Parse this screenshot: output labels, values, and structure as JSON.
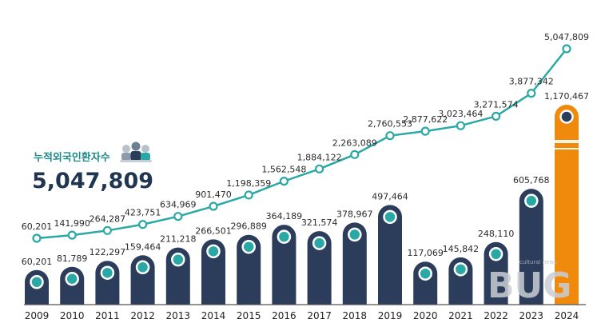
{
  "chart_data": {
    "type": "bar",
    "categories": [
      "2009",
      "2010",
      "2011",
      "2012",
      "2013",
      "2014",
      "2015",
      "2016",
      "2017",
      "2018",
      "2019",
      "2020",
      "2021",
      "2022",
      "2023",
      "2024"
    ],
    "series": [
      {
        "type": "bar",
        "values": [
          60201,
          81789,
          122297,
          159464,
          211218,
          266501,
          296889,
          364189,
          321574,
          378967,
          497464,
          117069,
          145842,
          248110,
          605768,
          1170467
        ],
        "labels": [
          "60,201",
          "81,789",
          "122,297",
          "159,464",
          "211,218",
          "266,501",
          "296,889",
          "364,189",
          "321,574",
          "378,967",
          "497,464",
          "117,069",
          "145,842",
          "248,110",
          "605,768",
          "1,170,467"
        ]
      },
      {
        "type": "line",
        "values": [
          60201,
          141990,
          264287,
          423751,
          634969,
          901470,
          1198359,
          1562548,
          1884122,
          2263089,
          2760553,
          2877622,
          3023464,
          3271574,
          3877342,
          5047809
        ],
        "labels": [
          "60,201",
          "141,990",
          "264,287",
          "423,751",
          "634,969",
          "901,470",
          "1,198,359",
          "1,562,548",
          "1,884,122",
          "2,263,089",
          "2,760,553",
          "2,877,622",
          "3,023,464",
          "3,271,574",
          "3,877,342",
          "5,047,809"
        ]
      }
    ],
    "colors": {
      "bar": "#2b3d5b",
      "bar_highlight": "#f08a0c",
      "line": "#2aa8a5",
      "marker": "#2aa8a5"
    }
  },
  "caption": {
    "label": "누적외국인환자수",
    "total": "5,047,809"
  },
  "watermark": {
    "text": "BUG",
    "small": "cultural news"
  }
}
